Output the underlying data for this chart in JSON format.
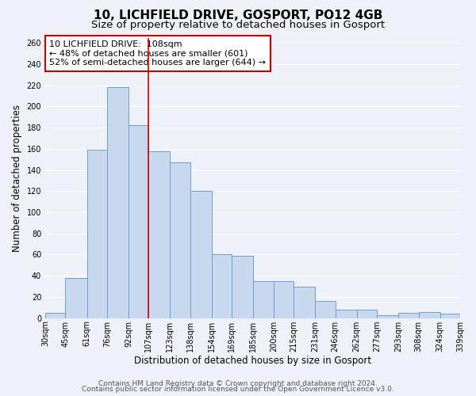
{
  "title": "10, LICHFIELD DRIVE, GOSPORT, PO12 4GB",
  "subtitle": "Size of property relative to detached houses in Gosport",
  "xlabel": "Distribution of detached houses by size in Gosport",
  "ylabel": "Number of detached properties",
  "bar_left_edges": [
    30,
    45,
    61,
    76,
    92,
    107,
    123,
    138,
    154,
    169,
    185,
    200,
    215,
    231,
    246,
    262,
    277,
    293,
    308,
    324
  ],
  "bar_widths": [
    15,
    16,
    15,
    16,
    15,
    16,
    15,
    16,
    15,
    16,
    15,
    15,
    16,
    15,
    16,
    15,
    16,
    15,
    16,
    15
  ],
  "bar_heights": [
    5,
    38,
    159,
    218,
    182,
    158,
    147,
    120,
    60,
    59,
    35,
    35,
    30,
    16,
    8,
    8,
    3,
    5,
    6,
    4
  ],
  "tick_labels": [
    "30sqm",
    "45sqm",
    "61sqm",
    "76sqm",
    "92sqm",
    "107sqm",
    "123sqm",
    "138sqm",
    "154sqm",
    "169sqm",
    "185sqm",
    "200sqm",
    "215sqm",
    "231sqm",
    "246sqm",
    "262sqm",
    "277sqm",
    "293sqm",
    "308sqm",
    "324sqm",
    "339sqm"
  ],
  "bar_color": "#c8d8ee",
  "bar_edge_color": "#6a9fc8",
  "vline_x": 107,
  "vline_color": "#cc0000",
  "ylim": [
    0,
    265
  ],
  "yticks": [
    0,
    20,
    40,
    60,
    80,
    100,
    120,
    140,
    160,
    180,
    200,
    220,
    240,
    260
  ],
  "annotation_title": "10 LICHFIELD DRIVE:  108sqm",
  "annotation_line1": "← 48% of detached houses are smaller (601)",
  "annotation_line2": "52% of semi-detached houses are larger (644) →",
  "annotation_box_color": "#ffffff",
  "annotation_box_edge": "#cc0000",
  "footer1": "Contains HM Land Registry data © Crown copyright and database right 2024.",
  "footer2": "Contains public sector information licensed under the Open Government Licence v3.0.",
  "bg_color": "#eef2f8",
  "grid_color": "#ffffff",
  "title_fontsize": 11,
  "subtitle_fontsize": 9.5,
  "axis_label_fontsize": 8.5,
  "tick_fontsize": 7,
  "annotation_fontsize": 8,
  "footer_fontsize": 6.5
}
